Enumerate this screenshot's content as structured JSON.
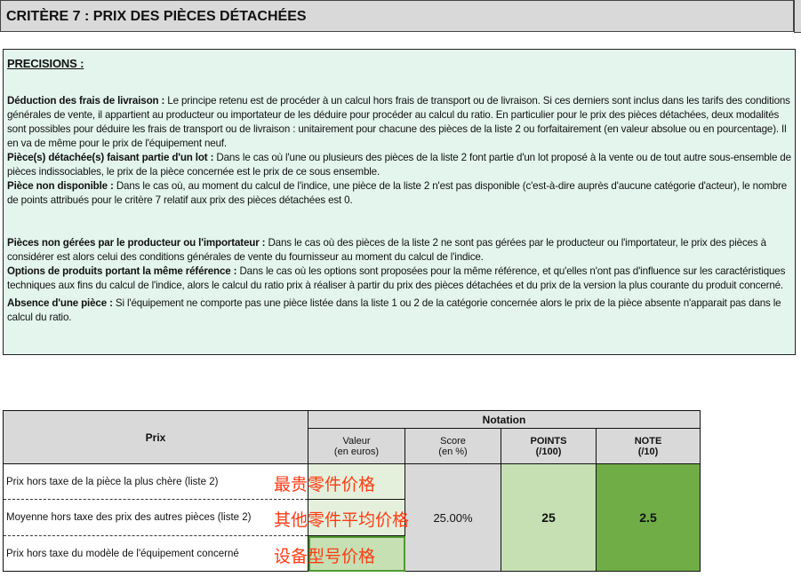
{
  "title": "CRITÈRE 7 : PRIX DES PIÈCES DÉTACHÉES",
  "precisions": {
    "heading": "PRECISIONS :",
    "items": [
      {
        "title": "Déduction des frais de livraison :",
        "body": " Le principe retenu est de procéder à un calcul hors frais de transport ou de livraison. Si ces derniers sont inclus dans les tarifs des conditions générales de vente, il appartient au producteur ou importateur de les déduire pour procéder au calcul du ratio. En particulier pour le prix des pièces détachées, deux modalités sont possibles pour déduire les frais de transport ou de livraison : unitairement pour chacune des pièces de la liste 2 ou forfaitairement (en valeur absolue ou en pourcentage). Il en va de même pour le prix de l'équipement neuf."
      },
      {
        "title": "Pièce(s) détachée(s) faisant partie d'un lot :",
        "body": " Dans le cas où l'une ou plusieurs des pièces de la liste 2 font partie d'un lot proposé à la vente ou de tout autre sous-ensemble de pièces indissociables, le prix de la pièce concernée est le prix de ce sous ensemble."
      },
      {
        "title": "Pièce non disponible :",
        "body": " Dans le cas où, au moment du calcul de l'indice, une pièce de la liste 2 n'est pas disponible (c'est-à-dire auprès d'aucune catégorie d'acteur), le nombre de points attribués pour le critère 7 relatif aux prix des pièces détachées est 0."
      },
      {
        "title": "Pièces non gérées par le producteur ou l'importateur :",
        "body": " Dans le cas où des pièces de la liste 2 ne sont pas gérées par le producteur ou l'importateur, le prix des pièces à considérer est alors celui des conditions générales de vente du fournisseur au moment du calcul de l'indice."
      },
      {
        "title": "Options de produits portant la même référence :",
        "body": " Dans le cas où les options sont proposées pour la même référence, et qu'elles n'ont pas d'influence sur les caractéristiques techniques aux fins du calcul de l'indice, alors le calcul du ratio prix à réaliser à partir du prix des pièces détachées et du prix de la version la plus courante du produit concerné."
      },
      {
        "title": "Absence d'une pièce :",
        "body": " Si l'équipement ne comporte pas une pièce listée dans la liste 1 ou 2 de la catégorie concernée alors le prix de la pièce absente n'apparait pas dans le calcul du ratio."
      }
    ]
  },
  "table": {
    "prix_header": "Prix",
    "notation_header": "Notation",
    "cols": [
      {
        "l1": "Valeur",
        "l2": "(en euros)"
      },
      {
        "l1": "Score",
        "l2": "(en %)"
      },
      {
        "l1": "POINTS",
        "l2": "(/100)"
      },
      {
        "l1": "NOTE",
        "l2": "(/10)"
      }
    ],
    "rows": [
      {
        "label": "Prix hors taxe de la pièce la plus chère (liste 2)",
        "annotation": "最贵零件价格",
        "value": ""
      },
      {
        "label": "Moyenne hors taxe des prix des autres pièces (liste 2)",
        "annotation": "其他零件平均价格",
        "value": ""
      },
      {
        "label": "Prix hors taxe du modèle de l'équipement concerné",
        "annotation": "设备型号价格",
        "value": ""
      }
    ],
    "score": "25.00%",
    "points": "25",
    "note": "2.5"
  }
}
